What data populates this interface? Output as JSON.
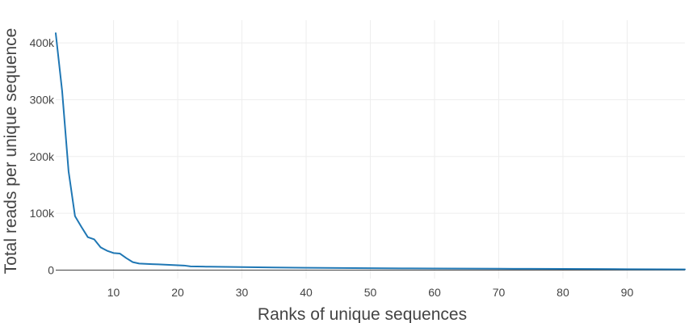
{
  "chart_data": {
    "type": "line",
    "title": "",
    "xlabel": "Ranks of unique sequences",
    "ylabel": "Total reads per unique sequence",
    "xlim": [
      1,
      99
    ],
    "ylim": [
      -15000,
      440000
    ],
    "x_ticks": [
      10,
      20,
      30,
      40,
      50,
      60,
      70,
      80,
      90
    ],
    "x_tick_labels": [
      "10",
      "20",
      "30",
      "40",
      "50",
      "60",
      "70",
      "80",
      "90"
    ],
    "y_ticks": [
      0,
      100000,
      200000,
      300000,
      400000
    ],
    "y_tick_labels": [
      "0",
      "100k",
      "200k",
      "300k",
      "400k"
    ],
    "grid": true,
    "line_color": "#1f77b4",
    "series": [
      {
        "x": [
          1,
          2,
          3,
          4,
          5,
          6,
          7,
          8,
          9,
          10,
          11,
          12,
          13,
          14,
          15,
          16,
          17,
          18,
          19,
          20,
          21,
          22,
          23,
          24,
          25,
          30,
          35,
          40,
          45,
          50,
          55,
          60,
          65,
          70,
          75,
          80,
          85,
          90,
          95,
          99
        ],
        "y": [
          417000,
          315000,
          174000,
          95000,
          76000,
          58000,
          54000,
          40000,
          34000,
          30000,
          29000,
          21000,
          14000,
          11500,
          11000,
          10500,
          10000,
          9500,
          9000,
          8500,
          8000,
          6500,
          6300,
          6100,
          5900,
          5200,
          4600,
          4000,
          3600,
          3300,
          3000,
          2800,
          2600,
          2400,
          2200,
          2000,
          1800,
          1600,
          1400,
          1200
        ]
      }
    ]
  }
}
